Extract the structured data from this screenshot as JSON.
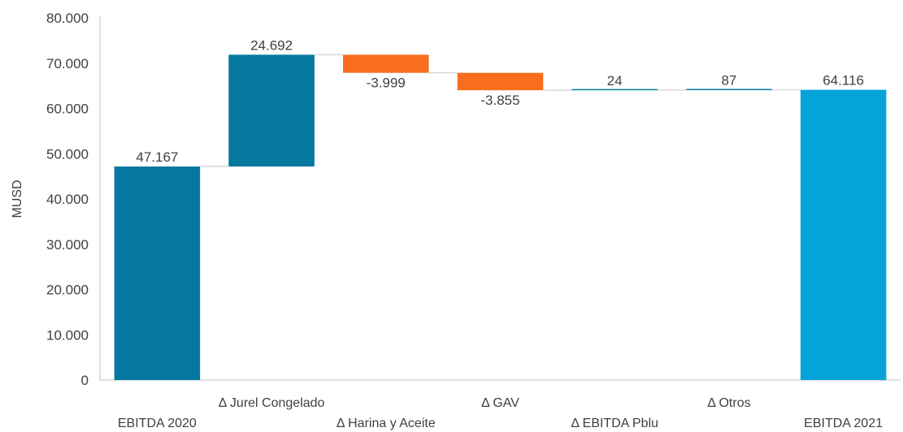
{
  "chart_data": {
    "type": "bar",
    "subtype": "waterfall",
    "ylabel": "MUSD",
    "ylim": [
      0,
      80000
    ],
    "y_ticks": [
      0,
      10000,
      20000,
      30000,
      40000,
      50000,
      60000,
      70000,
      80000
    ],
    "y_tick_labels": [
      "0",
      "10.000",
      "20.000",
      "30.000",
      "40.000",
      "50.000",
      "60.000",
      "70.000",
      "80.000"
    ],
    "gridlines": false,
    "legend": "none",
    "categories": [
      "EBITDA 2020",
      "Δ Jurel Congelado",
      "Δ Harina y Aceite",
      "Δ GAV",
      "Δ EBITDA Pblu",
      "Δ Otros",
      "EBITDA 2021"
    ],
    "values": [
      47167,
      24692,
      -3999,
      -3855,
      24,
      87,
      64116
    ],
    "value_labels": [
      "47.167",
      "24.692",
      "-3.999",
      "-3.855",
      "24",
      "87",
      "64.116"
    ],
    "bar_kind": [
      "total",
      "delta",
      "delta",
      "delta",
      "delta",
      "delta",
      "total"
    ],
    "colors": {
      "start_total": "#0677A1",
      "increase": "#0677A1",
      "decrease": "#F96D1E",
      "end_total": "#06A3D9",
      "connector": "#D9D9D9",
      "axis": "#BFBFBF",
      "text": "#404040"
    }
  }
}
